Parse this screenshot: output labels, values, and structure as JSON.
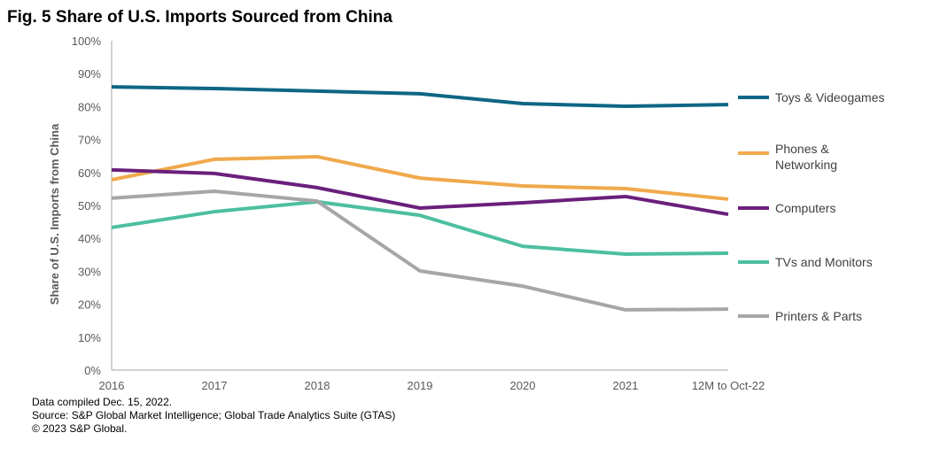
{
  "chart_data": {
    "type": "line",
    "title": "Fig. 5 Share of U.S. Imports Sourced from China",
    "xlabel": "",
    "ylabel": "Share of U.S. Imports from China",
    "ylim": [
      0,
      100
    ],
    "yticks": [
      "0%",
      "10%",
      "20%",
      "30%",
      "40%",
      "50%",
      "60%",
      "70%",
      "80%",
      "90%",
      "100%"
    ],
    "categories": [
      "2016",
      "2017",
      "2018",
      "2019",
      "2020",
      "2021",
      "12M to Oct-22"
    ],
    "grid": false,
    "legend_placement": "right",
    "series": [
      {
        "name": "Toys & Videogames",
        "color": "#0e6685",
        "values": [
          86.0,
          85.5,
          84.7,
          83.9,
          80.9,
          80.1,
          80.6
        ]
      },
      {
        "name": "Phones & Networking",
        "color": "#f0a94c",
        "values": [
          57.8,
          64.0,
          64.8,
          58.3,
          55.9,
          55.1,
          51.9
        ]
      },
      {
        "name": "Computers",
        "color": "#6b1f7c",
        "values": [
          60.8,
          59.7,
          55.4,
          49.2,
          50.8,
          52.7,
          47.3
        ]
      },
      {
        "name": "TVs and Monitors",
        "color": "#4cbf9f",
        "values": [
          43.3,
          48.1,
          51.1,
          47.0,
          37.6,
          35.2,
          35.5
        ]
      },
      {
        "name": "Printers & Parts",
        "color": "#a6a6a6",
        "values": [
          52.2,
          54.3,
          51.3,
          30.1,
          25.5,
          18.3,
          18.5
        ]
      }
    ]
  },
  "notes": [
    "Data compiled Dec. 15, 2022.",
    "Source: S&P Global Market Intelligence; Global Trade Analytics Suite (GTAS)",
    "© 2023 S&P Global."
  ]
}
